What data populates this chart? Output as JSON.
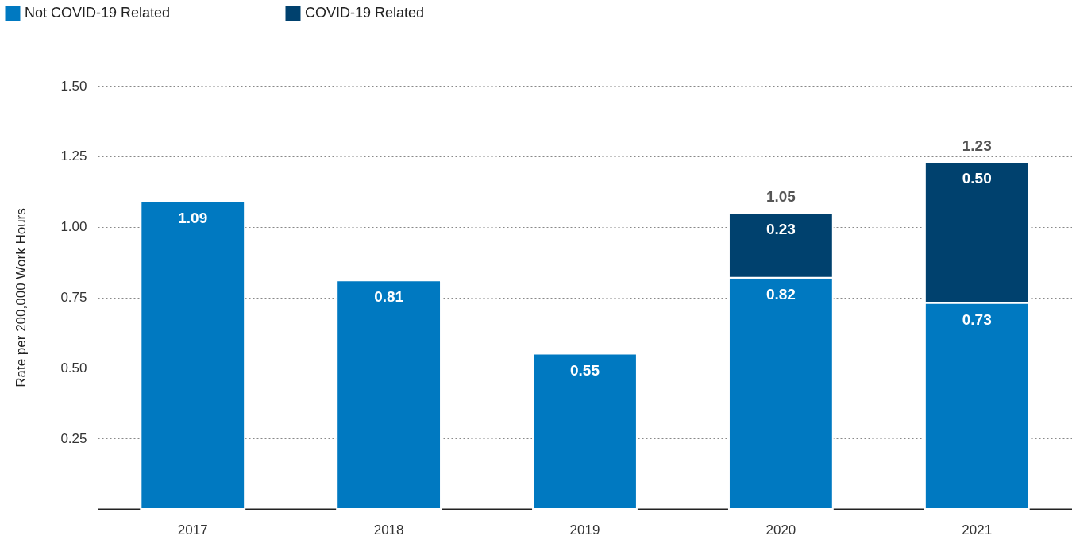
{
  "chart_data": {
    "type": "bar",
    "stacked": true,
    "ylabel": "Rate per 200,000 Work Hours",
    "categories": [
      "2017",
      "2018",
      "2019",
      "2020",
      "2021"
    ],
    "series": [
      {
        "name": "Not COVID-19 Related",
        "color": "#0079c1",
        "values": [
          1.09,
          0.81,
          0.55,
          0.82,
          0.73
        ],
        "value_labels": [
          "1.09",
          "0.81",
          "0.55",
          "0.82",
          "0.73"
        ]
      },
      {
        "name": "COVID-19 Related",
        "color": "#00416e",
        "values": [
          null,
          null,
          null,
          0.23,
          0.5
        ],
        "value_labels": [
          null,
          null,
          null,
          "0.23",
          "0.50"
        ]
      }
    ],
    "totals": [
      null,
      null,
      null,
      "1.05",
      "1.23"
    ],
    "ylim": [
      0,
      1.5
    ],
    "yticks": [
      {
        "value": 0.25,
        "label": "0.25"
      },
      {
        "value": 0.5,
        "label": "0.50"
      },
      {
        "value": 0.75,
        "label": "0.75"
      },
      {
        "value": 1,
        "label": "1.00"
      },
      {
        "value": 1.25,
        "label": "1.25"
      },
      {
        "value": 1.5,
        "label": "1.50"
      }
    ],
    "grid": "y",
    "legend": "top left"
  }
}
